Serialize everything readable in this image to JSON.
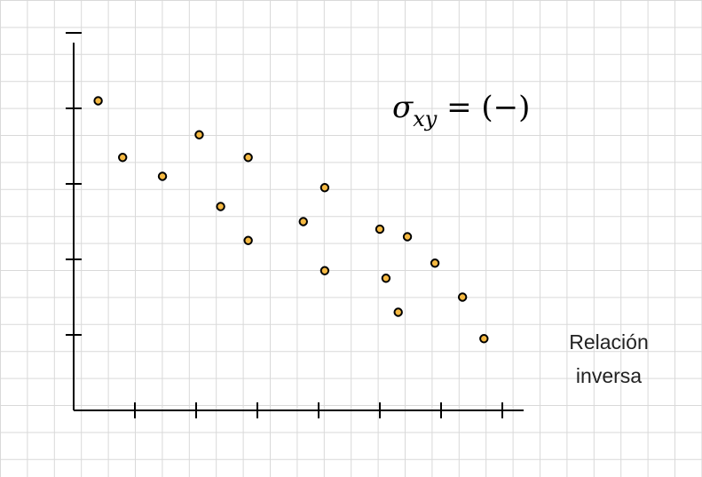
{
  "chart_data": {
    "type": "scatter",
    "title": "",
    "xlabel": "",
    "ylabel": "",
    "grid": true,
    "points": [
      {
        "x": 0.4,
        "y": 4.1
      },
      {
        "x": 0.8,
        "y": 3.35
      },
      {
        "x": 1.45,
        "y": 3.1
      },
      {
        "x": 2.05,
        "y": 3.65
      },
      {
        "x": 2.4,
        "y": 2.7
      },
      {
        "x": 2.85,
        "y": 3.35
      },
      {
        "x": 2.85,
        "y": 2.25
      },
      {
        "x": 3.75,
        "y": 2.5
      },
      {
        "x": 4.1,
        "y": 2.95
      },
      {
        "x": 4.1,
        "y": 1.85
      },
      {
        "x": 5.0,
        "y": 2.4
      },
      {
        "x": 5.1,
        "y": 1.75
      },
      {
        "x": 5.3,
        "y": 1.3
      },
      {
        "x": 5.45,
        "y": 2.3
      },
      {
        "x": 5.9,
        "y": 1.95
      },
      {
        "x": 6.35,
        "y": 1.5
      },
      {
        "x": 6.7,
        "y": 0.95
      }
    ],
    "xlim": [
      0,
      7.5
    ],
    "ylim": [
      0,
      5
    ],
    "x_ticks": [
      1,
      2,
      3,
      4,
      5,
      6,
      7
    ],
    "y_ticks": [
      1,
      2,
      3,
      4,
      5
    ],
    "annotation": {
      "formula_symbol": "σ",
      "formula_subscript": "xy",
      "formula_rhs": " = (−)",
      "label_line1": "Relación",
      "label_line2": "inversa"
    },
    "colors": {
      "point_fill": "#f5b942",
      "point_stroke": "#000000",
      "grid": "#d9d9d9",
      "axis": "#000000"
    }
  }
}
